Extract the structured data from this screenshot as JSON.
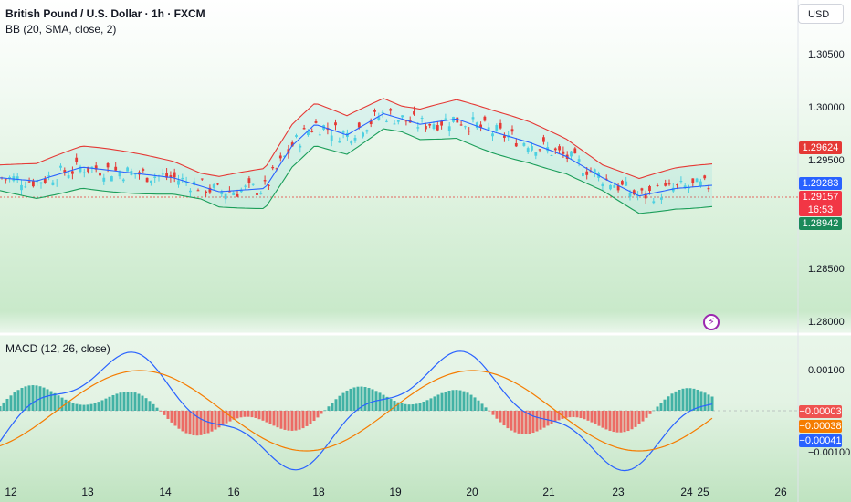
{
  "legend": {
    "symbol_line": "British Pound / U.S. Dollar · 1h · FXCM",
    "bb_line": "BB (20, SMA, close, 2)",
    "macd_line": "MACD (12, 26, close)"
  },
  "currency_button": "USD",
  "price_axis": {
    "ticks": [
      "1.30500",
      "1.30000",
      "1.29500",
      "1.28500",
      "1.28000"
    ],
    "badges": {
      "bb_upper": "1.29624",
      "bb_basis": "1.29283",
      "last_price": "1.29157",
      "countdown": "16:53",
      "bb_lower": "1.28942"
    }
  },
  "macd_axis": {
    "ticks": [
      "0.00100",
      "−0.00100"
    ],
    "badges": {
      "histogram": "−0.00003",
      "signal": "−0.00038",
      "macd": "−0.00041"
    }
  },
  "time_axis": {
    "labels": [
      "12",
      "13",
      "14",
      "16",
      "18",
      "19",
      "20",
      "21",
      "23",
      "24",
      "25",
      "26"
    ]
  },
  "colors": {
    "up": "#4dd0e1",
    "down": "#e53935",
    "bb_upper": "#e53935",
    "bb_basis": "#2962ff",
    "bb_lower": "#1b9e5a",
    "macd_line": "#2962ff",
    "signal_line": "#f57c00",
    "hist_pos": "#26a69a",
    "hist_neg": "#ef5350"
  },
  "icons": {
    "flash": "lightning-icon"
  }
}
